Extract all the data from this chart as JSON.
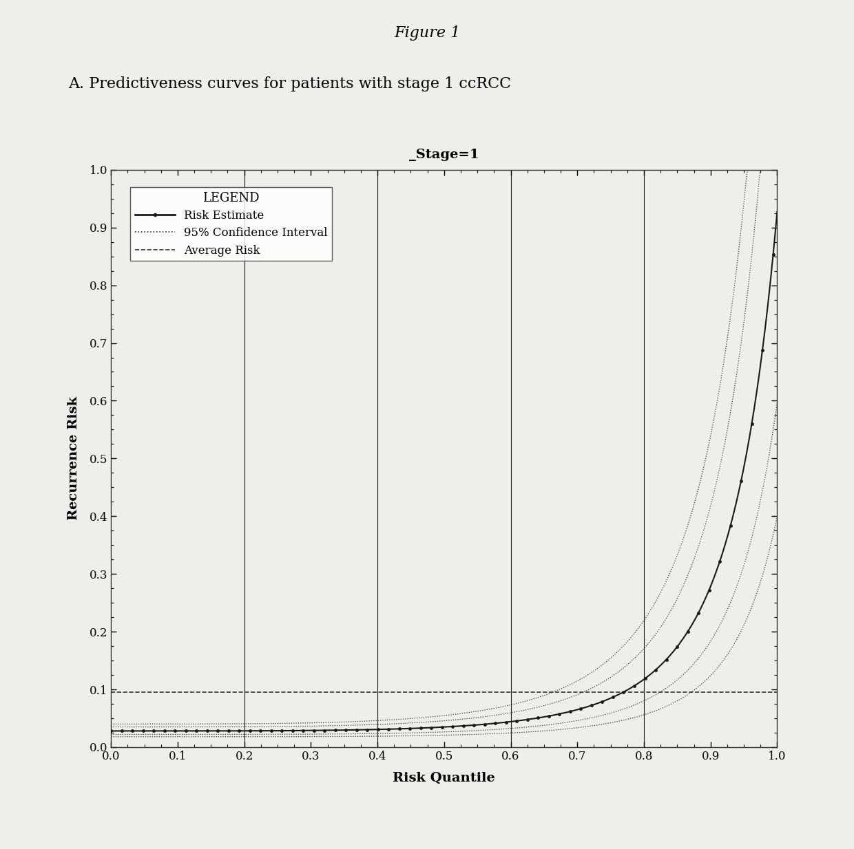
{
  "figure_title": "Figure 1",
  "subtitle": "A. Predictiveness curves for patients with stage 1 ccRCC",
  "plot_title": "_Stage=1",
  "xlabel": "Risk Quantile",
  "ylabel": "Recurrence Risk",
  "xlim": [
    0.0,
    1.0
  ],
  "ylim": [
    0.0,
    1.0
  ],
  "xticks": [
    0.0,
    0.1,
    0.2,
    0.3,
    0.4,
    0.5,
    0.6,
    0.7,
    0.8,
    0.9,
    1.0
  ],
  "yticks": [
    0.0,
    0.1,
    0.2,
    0.3,
    0.4,
    0.5,
    0.6,
    0.7,
    0.8,
    0.9,
    1.0
  ],
  "average_risk": 0.095,
  "vlines": [
    0.2,
    0.4,
    0.6,
    0.8
  ],
  "legend_title": "LEGEND",
  "legend_labels": [
    "Risk Estimate",
    "95% Confidence Interval",
    "Average Risk"
  ],
  "background_color": "#f0eeea",
  "plot_bg_color": "#f0eeea",
  "line_color": "#1a1a1a",
  "ci_color": "#333333",
  "avg_color": "#333333"
}
